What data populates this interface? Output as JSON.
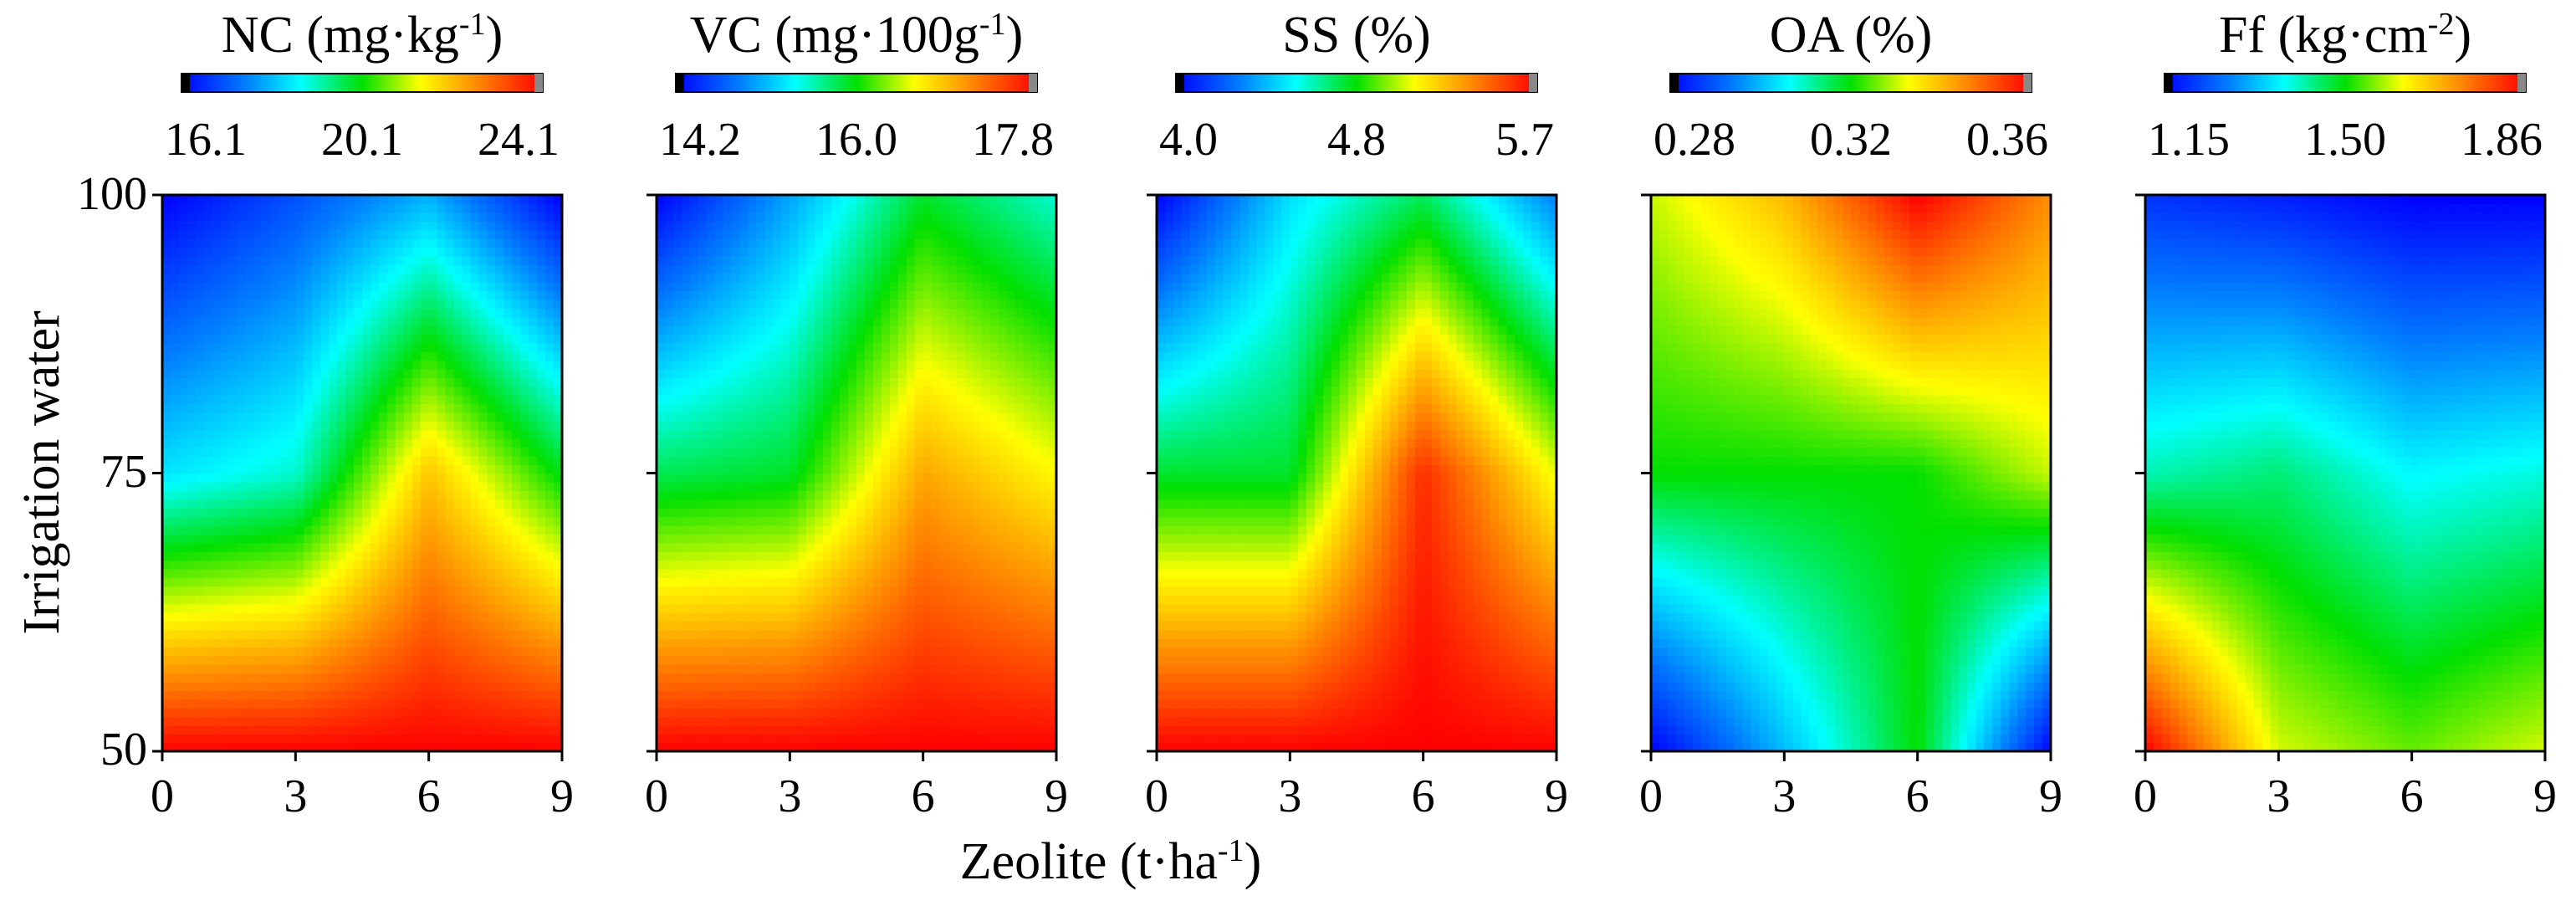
{
  "chart_data": [
    {
      "type": "heatmap",
      "title": "NC (mg·kg",
      "title_sup": "-1",
      "title_end": ")",
      "colorbar_ticks": [
        "16.1",
        "20.1",
        "24.1"
      ],
      "vmin": 16.1,
      "vmax": 24.1,
      "x": [
        0,
        3,
        6,
        9
      ],
      "y": [
        50,
        75,
        100
      ],
      "z": [
        [
          24.1,
          24.1,
          24.1,
          24.1
        ],
        [
          18.5,
          19.0,
          22.0,
          20.0
        ],
        [
          16.1,
          17.0,
          18.0,
          16.1
        ]
      ]
    },
    {
      "type": "heatmap",
      "title": "VC (mg·100g",
      "title_sup": "-1",
      "title_end": ")",
      "colorbar_ticks": [
        "14.2",
        "16.0",
        "17.8"
      ],
      "vmin": 14.2,
      "vmax": 17.8,
      "x": [
        0,
        3,
        6,
        9
      ],
      "y": [
        50,
        75,
        100
      ],
      "z": [
        [
          17.8,
          17.8,
          17.8,
          17.8
        ],
        [
          15.8,
          15.9,
          17.0,
          16.6
        ],
        [
          14.2,
          15.0,
          15.9,
          15.5
        ]
      ]
    },
    {
      "type": "heatmap",
      "title": "SS (%)",
      "title_sup": "",
      "title_end": "",
      "colorbar_ticks": [
        "4.0",
        "4.8",
        "5.7"
      ],
      "vmin": 4.0,
      "vmax": 5.7,
      "x": [
        0,
        3,
        6,
        9
      ],
      "y": [
        50,
        75,
        100
      ],
      "z": [
        [
          5.7,
          5.7,
          5.7,
          5.7
        ],
        [
          4.8,
          4.8,
          5.6,
          5.1
        ],
        [
          4.0,
          4.5,
          4.75,
          4.3
        ]
      ]
    },
    {
      "type": "heatmap",
      "title": "OA (%)",
      "title_sup": "",
      "title_end": "",
      "colorbar_ticks": [
        "0.28",
        "0.32",
        "0.36"
      ],
      "vmin": 0.28,
      "vmax": 0.36,
      "x": [
        0,
        3,
        6,
        9
      ],
      "y": [
        50,
        75,
        100
      ],
      "z": [
        [
          0.28,
          0.3,
          0.32,
          0.28
        ],
        [
          0.32,
          0.32,
          0.32,
          0.33
        ],
        [
          0.33,
          0.34,
          0.36,
          0.345
        ]
      ]
    },
    {
      "type": "heatmap",
      "title": "Ff (kg·cm",
      "title_sup": "-2",
      "title_end": ")",
      "colorbar_ticks": [
        "1.15",
        "1.50",
        "1.86"
      ],
      "vmin": 1.15,
      "vmax": 1.86,
      "x": [
        0,
        3,
        6,
        9
      ],
      "y": [
        50,
        75,
        100
      ],
      "z": [
        [
          1.86,
          1.6,
          1.55,
          1.6
        ],
        [
          1.42,
          1.45,
          1.38,
          1.4
        ],
        [
          1.2,
          1.18,
          1.15,
          1.15
        ]
      ]
    }
  ],
  "xlabel": "Zeolite (t·ha",
  "xlabel_sup": "-1",
  "xlabel_end": ")",
  "ylabel": "Irrigation water",
  "x_ticks": [
    "0",
    "3",
    "6",
    "9"
  ],
  "y_ticks": [
    "100",
    "75",
    "50"
  ]
}
